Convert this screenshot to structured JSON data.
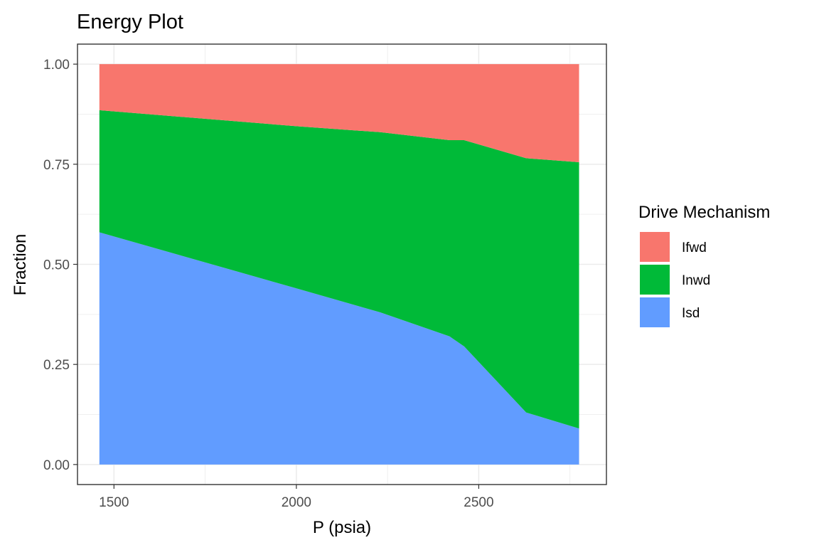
{
  "chart_data": {
    "type": "area",
    "stacked": true,
    "title": "Energy Plot",
    "xlabel": "P (psia)",
    "ylabel": "Fraction",
    "xlim": [
      1400,
      2850
    ],
    "ylim": [
      -0.05,
      1.05
    ],
    "x_ticks": [
      1500,
      2000,
      2500
    ],
    "x_tick_labels": [
      "1500",
      "2000",
      "2500"
    ],
    "y_ticks": [
      0,
      0.25,
      0.5,
      0.75,
      1.0
    ],
    "y_tick_labels": [
      "0.00",
      "0.25",
      "0.50",
      "0.75",
      "1.00"
    ],
    "grid": true,
    "x": [
      1460,
      2000,
      2230,
      2420,
      2460,
      2630,
      2775
    ],
    "series": [
      {
        "name": "Isd",
        "color": "#619CFF",
        "values": [
          0.58,
          0.44,
          0.38,
          0.32,
          0.295,
          0.13,
          0.09
        ]
      },
      {
        "name": "Inwd",
        "color": "#00BA38",
        "values": [
          0.305,
          0.405,
          0.45,
          0.49,
          0.515,
          0.635,
          0.665
        ]
      },
      {
        "name": "Ifwd",
        "color": "#F8766D",
        "values": [
          0.115,
          0.155,
          0.17,
          0.19,
          0.19,
          0.235,
          0.245
        ]
      }
    ],
    "legend": {
      "title": "Drive Mechanism",
      "position": "right",
      "entries": [
        {
          "label": "Ifwd",
          "color": "#F8766D"
        },
        {
          "label": "Inwd",
          "color": "#00BA38"
        },
        {
          "label": "Isd",
          "color": "#619CFF"
        }
      ]
    }
  }
}
